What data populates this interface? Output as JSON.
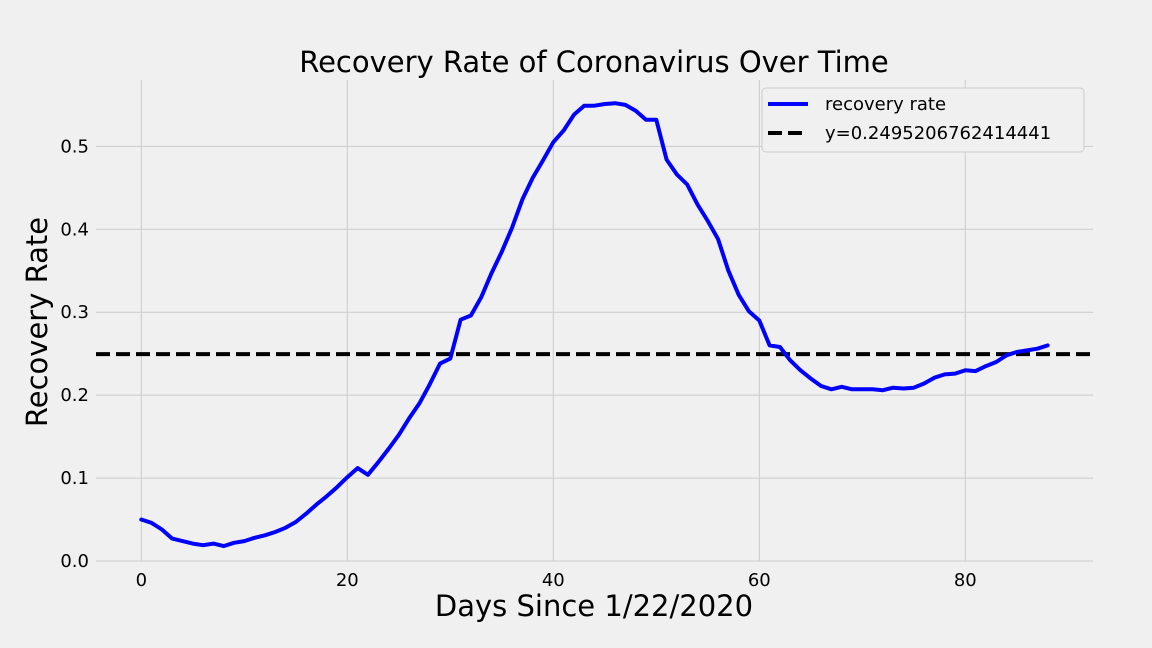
{
  "chart_data": {
    "type": "line",
    "title": "Recovery Rate of Coronavirus Over Time",
    "xlabel": "Days Since 1/22/2020",
    "ylabel": "Recovery Rate",
    "xlim": [
      -4.4,
      92.4
    ],
    "ylim": [
      0,
      0.58
    ],
    "x_ticks": [
      0,
      20,
      40,
      60,
      80
    ],
    "x_tick_labels": [
      "0",
      "20",
      "40",
      "60",
      "80"
    ],
    "y_ticks": [
      0.0,
      0.1,
      0.2,
      0.3,
      0.4,
      0.5
    ],
    "y_tick_labels": [
      "0.0",
      "0.1",
      "0.2",
      "0.3",
      "0.4",
      "0.5"
    ],
    "grid": true,
    "legend": {
      "placement": "top-right"
    },
    "series": [
      {
        "name": "recovery rate",
        "color": "#0000ff",
        "style": "solid",
        "x": [
          0,
          1,
          2,
          3,
          4,
          5,
          6,
          7,
          8,
          9,
          10,
          11,
          12,
          13,
          14,
          15,
          16,
          17,
          18,
          19,
          20,
          21,
          22,
          23,
          24,
          25,
          26,
          27,
          28,
          29,
          30,
          31,
          32,
          33,
          34,
          35,
          36,
          37,
          38,
          39,
          40,
          41,
          42,
          43,
          44,
          45,
          46,
          47,
          48,
          49,
          50,
          51,
          52,
          53,
          54,
          55,
          56,
          57,
          58,
          59,
          60,
          61,
          62,
          63,
          64,
          65,
          66,
          67,
          68,
          69,
          70,
          71,
          72,
          73,
          74,
          75,
          76,
          77,
          78,
          79,
          80,
          81,
          82,
          83,
          84,
          85,
          86,
          87,
          88
        ],
        "y": [
          0.05,
          0.046,
          0.038,
          0.027,
          0.024,
          0.021,
          0.019,
          0.021,
          0.018,
          0.022,
          0.024,
          0.028,
          0.031,
          0.035,
          0.04,
          0.047,
          0.057,
          0.068,
          0.078,
          0.089,
          0.101,
          0.112,
          0.104,
          0.119,
          0.135,
          0.152,
          0.172,
          0.19,
          0.213,
          0.238,
          0.244,
          0.291,
          0.296,
          0.318,
          0.347,
          0.373,
          0.402,
          0.436,
          0.462,
          0.483,
          0.505,
          0.519,
          0.538,
          0.549,
          0.549,
          0.551,
          0.552,
          0.55,
          0.543,
          0.532,
          0.532,
          0.484,
          0.466,
          0.454,
          0.43,
          0.41,
          0.388,
          0.35,
          0.321,
          0.301,
          0.29,
          0.26,
          0.258,
          0.242,
          0.23,
          0.22,
          0.211,
          0.207,
          0.21,
          0.207,
          0.207,
          0.207,
          0.206,
          0.209,
          0.208,
          0.209,
          0.214,
          0.221,
          0.225,
          0.226,
          0.23,
          0.229,
          0.235,
          0.24,
          0.248,
          0.252,
          0.254,
          0.256,
          0.26
        ]
      },
      {
        "name": "y=0.2495206762414441",
        "color": "#000000",
        "style": "dashed",
        "y_constant": 0.2495206762414441
      }
    ]
  }
}
